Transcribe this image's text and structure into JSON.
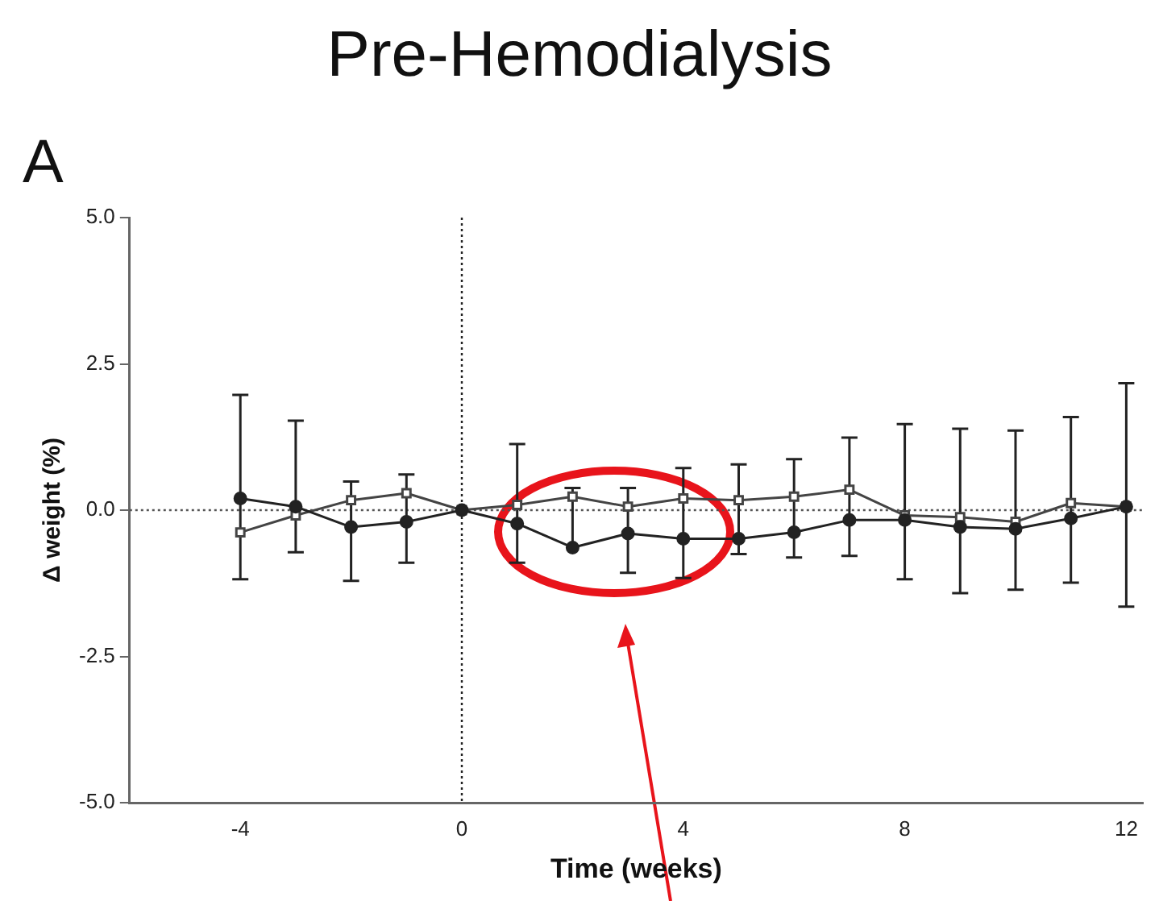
{
  "chart_data": {
    "type": "line",
    "title": "Pre-Hemodialysis",
    "xlabel": "Time (weeks)",
    "ylabel": "Δ weight (%)",
    "annotations": [
      "A"
    ],
    "x": [
      -4,
      -3,
      -2,
      -1,
      0,
      1,
      2,
      3,
      4,
      5,
      6,
      7,
      8,
      9,
      10,
      11,
      12
    ],
    "series": [
      {
        "color": "#222222",
        "marker": "circle",
        "values": [
          0.2,
          0.06,
          -0.29,
          -0.2,
          0,
          -0.23,
          -0.64,
          -0.4,
          -0.49,
          -0.49,
          -0.38,
          -0.17,
          -0.17,
          -0.29,
          -0.32,
          -0.14,
          0.06
        ],
        "errors": [
          [
            -1.18,
            1.97
          ],
          [
            -0.72,
            1.53
          ],
          [
            -1.21,
            0.49
          ],
          [
            -0.9,
            0.61
          ],
          null,
          [
            -0.9,
            1.13
          ],
          [
            -0.64,
            0.38
          ],
          [
            -1.07,
            0.38
          ],
          [
            -1.16,
            0.72
          ],
          [
            -0.75,
            0.78
          ],
          [
            -0.81,
            0.87
          ],
          [
            -0.78,
            1.24
          ],
          [
            -1.18,
            1.47
          ],
          [
            -1.42,
            1.39
          ],
          [
            -1.36,
            1.36
          ],
          [
            -1.24,
            1.59
          ],
          [
            -1.65,
            2.17
          ]
        ]
      },
      {
        "color": "#444444",
        "marker": "square",
        "values": [
          -0.38,
          -0.09,
          0.17,
          0.29,
          0,
          0.09,
          0.23,
          0.06,
          0.2,
          0.17,
          0.23,
          0.35,
          -0.09,
          -0.12,
          -0.2,
          0.12,
          0.06
        ]
      }
    ],
    "xlim": [
      -6,
      12.3
    ],
    "xticks": [
      -4,
      0,
      4,
      8,
      12
    ],
    "ylim": [
      -5,
      5
    ],
    "yticks": [
      {
        "value": -5,
        "label": "-5.0"
      },
      {
        "value": -2.5,
        "label": "-2.5"
      },
      {
        "value": 0,
        "label": "0.0"
      },
      {
        "value": 2.5,
        "label": "2.5"
      },
      {
        "value": 5,
        "label": "5.0"
      }
    ],
    "ref_lines": [
      {
        "axis": "y",
        "value": 0,
        "line_style": "dotted",
        "color": "#555555"
      },
      {
        "axis": "x",
        "value": 0,
        "line_style": "dotted",
        "color": "#222222"
      }
    ],
    "grid": false,
    "legend": false,
    "line_style": "solid"
  }
}
